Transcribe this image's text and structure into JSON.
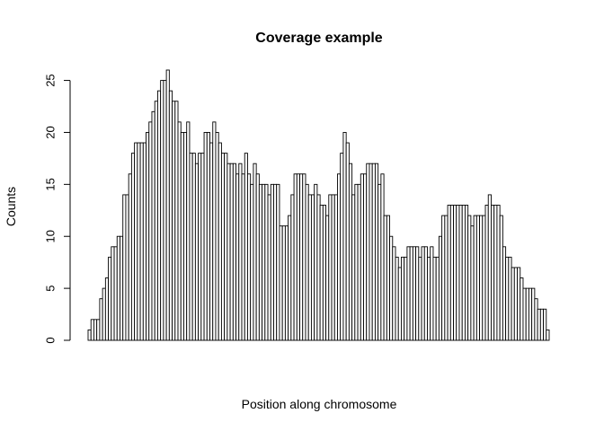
{
  "chart_data": {
    "type": "bar",
    "title": "Coverage example",
    "xlabel": "Position along chromosome",
    "ylabel": "Counts",
    "ylim": [
      0,
      26
    ],
    "yticks": [
      0,
      5,
      10,
      15,
      20,
      25
    ],
    "x_tick_labels_shown": false,
    "bar_fill": "#ffffff",
    "bar_stroke": "#000000",
    "values": [
      1,
      2,
      2,
      2,
      4,
      5,
      6,
      8,
      9,
      9,
      10,
      10,
      14,
      14,
      16,
      18,
      19,
      19,
      19,
      19,
      20,
      21,
      22,
      23,
      24,
      25,
      25,
      26,
      24,
      23,
      23,
      21,
      20,
      20,
      21,
      18,
      18,
      17,
      18,
      18,
      20,
      20,
      19,
      21,
      20,
      19,
      18,
      18,
      17,
      17,
      17,
      16,
      17,
      16,
      18,
      16,
      15,
      17,
      16,
      15,
      15,
      15,
      14,
      15,
      15,
      15,
      11,
      11,
      11,
      12,
      14,
      16,
      16,
      16,
      16,
      15,
      14,
      14,
      15,
      14,
      13,
      13,
      12,
      14,
      14,
      14,
      16,
      18,
      20,
      19,
      17,
      14,
      15,
      15,
      16,
      16,
      17,
      17,
      17,
      17,
      15,
      16,
      12,
      12,
      10,
      9,
      8,
      7,
      8,
      8,
      9,
      9,
      9,
      9,
      8,
      9,
      9,
      8,
      9,
      8,
      8,
      10,
      12,
      12,
      13,
      13,
      13,
      13,
      13,
      13,
      13,
      12,
      11,
      12,
      12,
      12,
      12,
      13,
      14,
      13,
      13,
      13,
      12,
      9,
      8,
      8,
      7,
      7,
      7,
      6,
      5,
      5,
      5,
      5,
      4,
      3,
      3,
      3,
      1
    ]
  }
}
